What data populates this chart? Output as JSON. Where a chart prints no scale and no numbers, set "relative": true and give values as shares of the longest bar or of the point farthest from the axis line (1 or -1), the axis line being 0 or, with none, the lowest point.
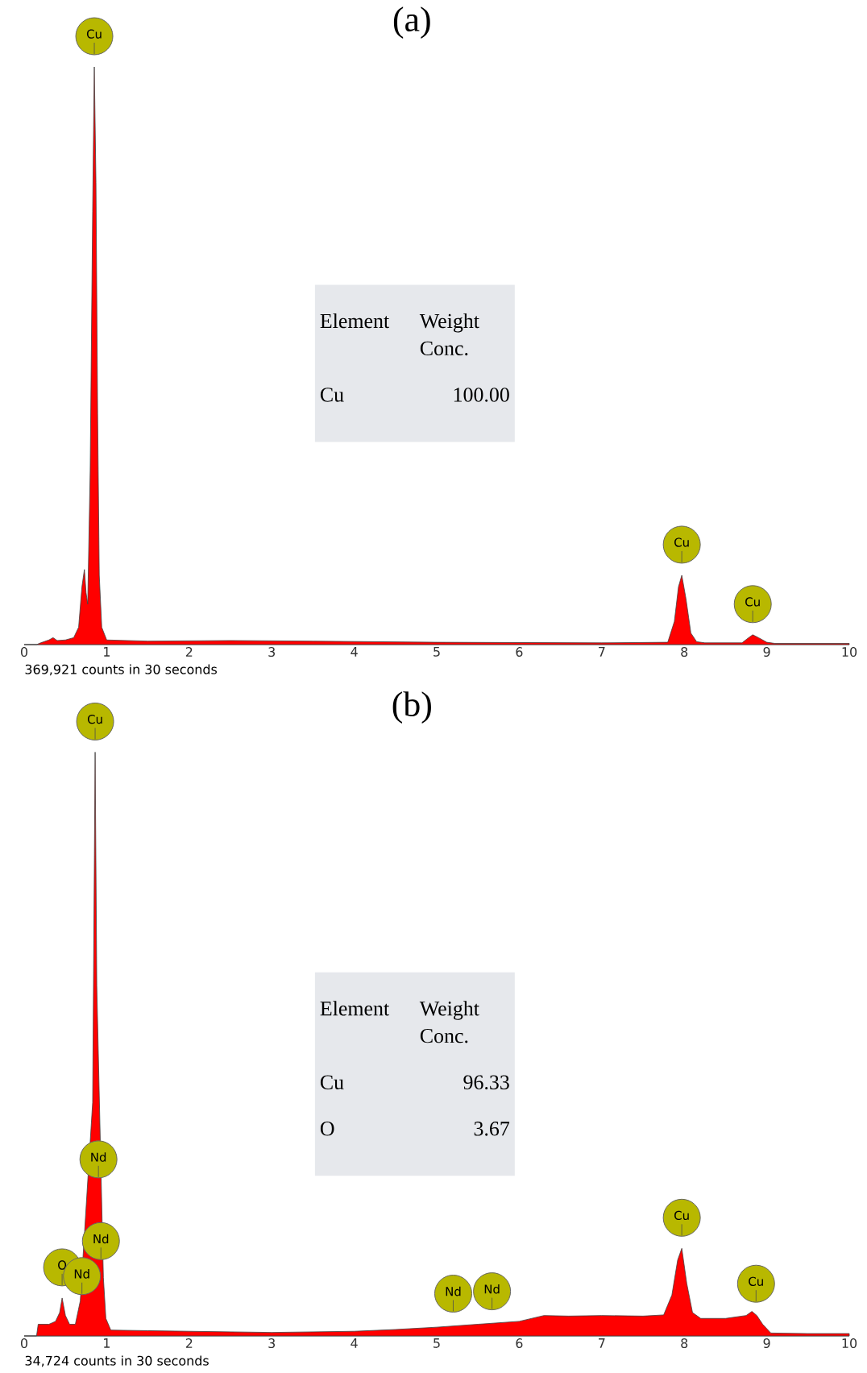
{
  "chart_data": [
    {
      "type": "area",
      "title": "(a)",
      "relative": true,
      "color": "#ff0000",
      "xlim": [
        0,
        10
      ],
      "xticks": [
        0,
        1,
        2,
        3,
        4,
        5,
        6,
        7,
        8,
        9,
        10
      ],
      "x": [
        0,
        0.15,
        0.2,
        0.3,
        0.35,
        0.4,
        0.5,
        0.6,
        0.66,
        0.7,
        0.73,
        0.75,
        0.77,
        0.8,
        0.83,
        0.85,
        0.87,
        0.89,
        0.91,
        0.94,
        1.0,
        1.5,
        2.5,
        3.5,
        5,
        7,
        7.8,
        7.88,
        7.93,
        7.97,
        8.02,
        8.08,
        8.15,
        8.25,
        8.7,
        8.78,
        8.83,
        8.9,
        9.0,
        9.1,
        10
      ],
      "values": [
        0,
        0,
        0.003,
        0.008,
        0.012,
        0.007,
        0.008,
        0.012,
        0.03,
        0.1,
        0.13,
        0.09,
        0.07,
        0.3,
        0.75,
        1.0,
        0.8,
        0.4,
        0.12,
        0.03,
        0.008,
        0.006,
        0.007,
        0.006,
        0.004,
        0.003,
        0.004,
        0.04,
        0.1,
        0.12,
        0.08,
        0.02,
        0.005,
        0.003,
        0.003,
        0.012,
        0.017,
        0.012,
        0.004,
        0.002,
        0.002
      ],
      "annotations": [
        {
          "text": "Cu",
          "x": 0.85,
          "y": 1.0
        },
        {
          "text": "Cu",
          "x": 7.97,
          "y": 0.12
        },
        {
          "text": "Cu",
          "x": 8.83,
          "y": 0.017
        },
        "369,921 counts in 30 seconds",
        "Element",
        "Weight Conc.",
        "Cu",
        "100.00"
      ]
    },
    {
      "type": "area",
      "title": "(b)",
      "relative": true,
      "color": "#ff0000",
      "xlim": [
        0,
        10
      ],
      "xticks": [
        0,
        1,
        2,
        3,
        4,
        5,
        6,
        7,
        8,
        9,
        10
      ],
      "x": [
        0,
        0.15,
        0.17,
        0.3,
        0.38,
        0.43,
        0.46,
        0.5,
        0.55,
        0.62,
        0.68,
        0.75,
        0.8,
        0.83,
        0.86,
        0.88,
        0.9,
        0.93,
        0.96,
        0.99,
        1.05,
        1.5,
        2,
        3,
        4,
        4.5,
        5,
        5.5,
        6,
        6.3,
        6.6,
        7,
        7.5,
        7.75,
        7.85,
        7.92,
        7.97,
        8.03,
        8.1,
        8.2,
        8.5,
        8.75,
        8.82,
        8.88,
        8.95,
        9.05,
        9.5,
        10
      ],
      "values": [
        0,
        0,
        0.02,
        0.02,
        0.025,
        0.04,
        0.065,
        0.035,
        0.02,
        0.02,
        0.06,
        null,
        null,
        0.4,
        1.0,
        0.6,
        null,
        null,
        0.1,
        0.03,
        0.01,
        0.009,
        0.008,
        0.006,
        0.008,
        0.011,
        0.015,
        0.02,
        0.025,
        0.035,
        0.034,
        0.035,
        0.034,
        0.036,
        0.07,
        0.13,
        0.15,
        0.09,
        0.04,
        0.03,
        0.03,
        0.035,
        0.042,
        0.035,
        0.02,
        0.005,
        0.004,
        0.004
      ],
      "annotations": [
        {
          "text": "Cu",
          "x": 0.86,
          "y": 1.0
        },
        {
          "text": "Nd",
          "x": 0.9,
          "y": 0.25
        },
        {
          "text": "Nd",
          "x": 0.93,
          "y": 0.11
        },
        {
          "text": "O",
          "x": 0.46,
          "y": 0.065
        },
        {
          "text": "Nd",
          "x": 0.7,
          "y": 0.05
        },
        {
          "text": "Nd",
          "x": 5.2,
          "y": 0.02
        },
        {
          "text": "Nd",
          "x": 5.67,
          "y": 0.024
        },
        {
          "text": "Cu",
          "x": 7.97,
          "y": 0.15
        },
        {
          "text": "Cu",
          "x": 8.87,
          "y": 0.037
        },
        "34,724 counts in 30 seconds",
        "Element",
        "Weight Conc.",
        "Cu",
        "96.33",
        "O",
        "3.67"
      ]
    }
  ]
}
